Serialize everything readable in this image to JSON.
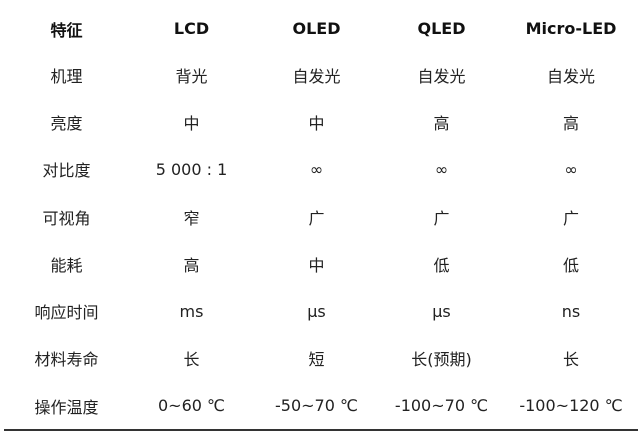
{
  "table": {
    "headers": [
      "特征",
      "LCD",
      "OLED",
      "QLED",
      "Micro-LED"
    ],
    "rows": [
      [
        "机理",
        "背光",
        "自发光",
        "自发光",
        "自发光"
      ],
      [
        "亮度",
        "中",
        "中",
        "高",
        "高"
      ],
      [
        "对比度",
        "5 000 : 1",
        "∞",
        "∞",
        "∞"
      ],
      [
        "可视角",
        "窄",
        "广",
        "广",
        "广"
      ],
      [
        "能耗",
        "高",
        "中",
        "低",
        "低"
      ],
      [
        "响应时间",
        "ms",
        "μs",
        "μs",
        "ns"
      ],
      [
        "材料寿命",
        "长",
        "短",
        "长(预期)",
        "长"
      ],
      [
        "操作温度",
        "0~60 ℃",
        "-50~70 ℃",
        "-100~70 ℃",
        "-100~120 ℃"
      ]
    ]
  }
}
